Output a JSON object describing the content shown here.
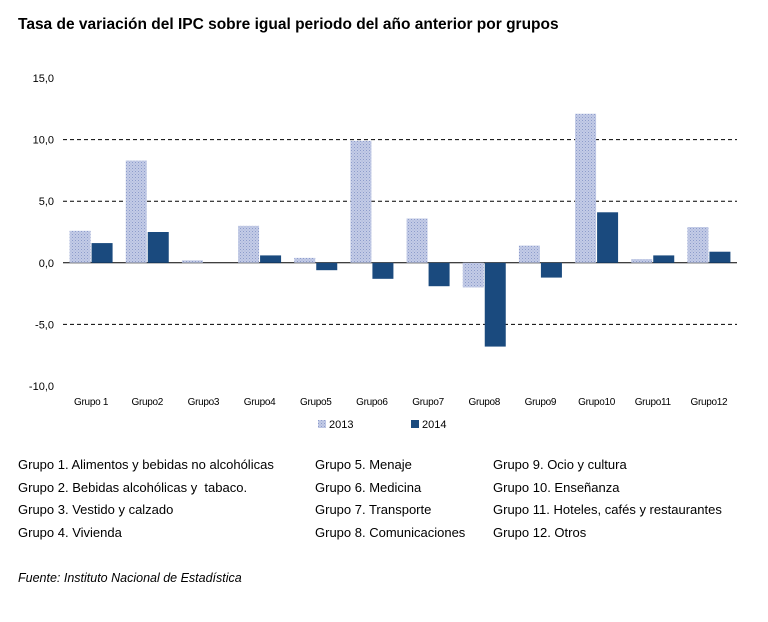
{
  "title": "Tasa de variación del IPC sobre igual periodo del año anterior por grupos",
  "chart_data": {
    "type": "bar",
    "title": "Tasa de variación del IPC sobre igual periodo del año anterior por grupos",
    "xlabel": "",
    "ylabel": "",
    "categories": [
      "Grupo 1",
      "Grupo2",
      "Grupo3",
      "Grupo4",
      "Grupo5",
      "Grupo6",
      "Grupo7",
      "Grupo8",
      "Grupo9",
      "Grupo10",
      "Grupo11",
      "Grupo12"
    ],
    "series": [
      {
        "name": "2013",
        "color": "#b4bedd",
        "values": [
          2.6,
          8.3,
          0.2,
          3.0,
          0.4,
          9.9,
          3.6,
          -2.0,
          1.4,
          12.1,
          0.3,
          2.9
        ]
      },
      {
        "name": "2014",
        "color": "#1a4a7e",
        "values": [
          1.6,
          2.5,
          0.0,
          0.6,
          -0.6,
          -1.3,
          -1.9,
          -6.8,
          -1.2,
          4.1,
          0.6,
          0.9
        ]
      }
    ],
    "ylim": [
      -10,
      15
    ],
    "yticks": [
      "15,0",
      "10,0",
      "5,0",
      "0,0",
      "-5,0",
      "-10,0"
    ],
    "ytick_values": [
      15,
      10,
      5,
      0,
      -5,
      -10
    ],
    "grid": "dashed",
    "legend_position": "bottom"
  },
  "groups": [
    [
      "Grupo 1. Alimentos y bebidas no alcohólicas",
      "Grupo 2. Bebidas alcohólicas y  tabaco.",
      "Grupo 3. Vestido y calzado",
      "Grupo 4. Vivienda"
    ],
    [
      "Grupo 5. Menaje",
      "Grupo 6. Medicina",
      "Grupo 7. Transporte",
      "Grupo 8. Comunicaciones"
    ],
    [
      "Grupo 9. Ocio y cultura",
      "Grupo 10. Enseñanza",
      "Grupo 11. Hoteles, cafés y restaurantes",
      "Grupo 12. Otros"
    ]
  ],
  "source": "Fuente: Instituto Nacional de Estadística"
}
